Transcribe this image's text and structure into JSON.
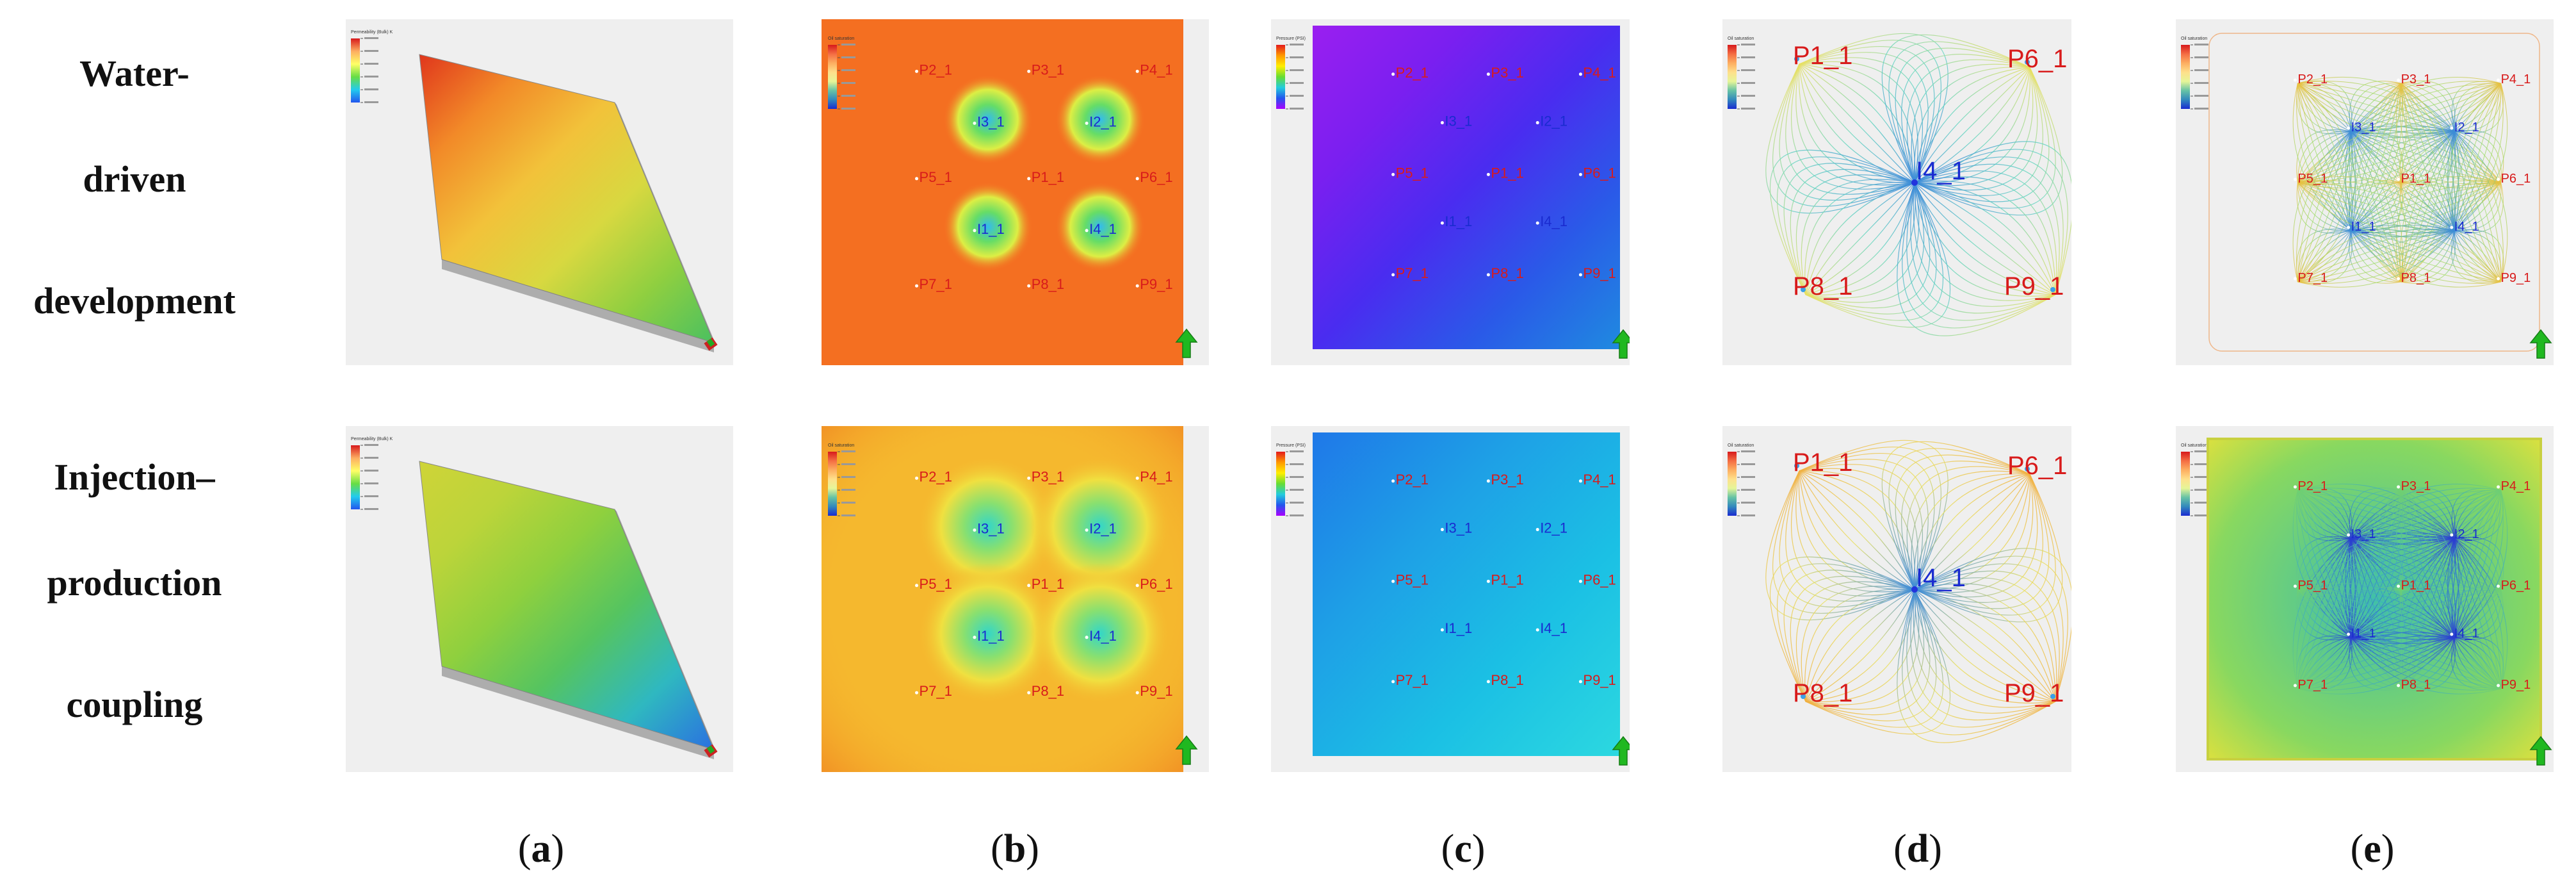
{
  "row_labels": [
    {
      "lines": [
        "Water-",
        "driven",
        "development"
      ]
    },
    {
      "lines": [
        "Injection–",
        "production",
        "coupling"
      ]
    }
  ],
  "captions": [
    "a",
    "b",
    "c",
    "d",
    "e"
  ],
  "legend_titles": {
    "permeability": "Permeability (Bulk) K",
    "oil_saturation": "Oil saturation",
    "pressure": "Pressure (PSI)"
  },
  "wells_3x3": {
    "producers": [
      "P2_1",
      "P3_1",
      "P4_1",
      "P5_1",
      "P1_1",
      "P6_1",
      "P7_1",
      "P8_1",
      "P9_1"
    ],
    "injectors": [
      "I3_1",
      "I2_1",
      "I1_1",
      "I4_1"
    ]
  },
  "wells_corner": {
    "producers": [
      "P1_1",
      "P6_1",
      "P8_1",
      "P9_1"
    ],
    "injector": "I4_1"
  },
  "colors": {
    "producer_label": "#d81b1b",
    "injector_label": "#1a2bd0",
    "north_arrow": "#20b820",
    "panel_bg": "#efefef"
  },
  "icons": {
    "north_arrow": "up-arrow-icon"
  }
}
